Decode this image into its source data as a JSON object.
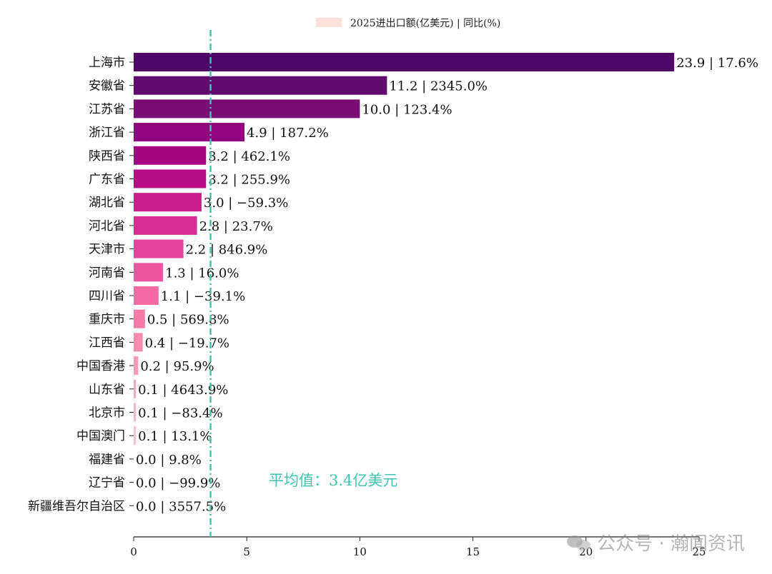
{
  "chart_data": {
    "type": "bar",
    "orientation": "horizontal",
    "legend": "2025进出口额(亿美元) | 同比(%)",
    "legend_position": "top-center",
    "categories": [
      "上海市",
      "安徽省",
      "江苏省",
      "浙江省",
      "陕西省",
      "广东省",
      "湖北省",
      "河北省",
      "天津市",
      "河南省",
      "四川省",
      "重庆市",
      "江西省",
      "中国香港",
      "山东省",
      "北京市",
      "中国澳门",
      "福建省",
      "辽宁省",
      "新疆维吾尔自治区"
    ],
    "values": [
      23.9,
      11.2,
      10.0,
      4.9,
      3.2,
      3.2,
      3.0,
      2.8,
      2.2,
      1.3,
      1.1,
      0.5,
      0.4,
      0.2,
      0.1,
      0.1,
      0.1,
      0.0,
      0.0,
      0.0
    ],
    "bar_labels": [
      "23.9 | 17.6%",
      "11.2 | 2345.0%",
      "10.0 | 123.4%",
      "4.9 | 187.2%",
      "3.2 | 462.1%",
      "3.2 | 255.9%",
      "3.0 | −59.3%",
      "2.8 | 23.7%",
      "2.2 | 846.9%",
      "1.3 | 16.0%",
      "1.1 | −39.1%",
      "0.5 | 569.8%",
      "0.4 | −19.7%",
      "0.2 | 95.9%",
      "0.1 | 4643.9%",
      "0.1 | −83.4%",
      "0.1 | 13.1%",
      "0.0 | 9.8%",
      "0.0 | −99.9%",
      "0.0 | 3557.5%"
    ],
    "colors": [
      "#4e0767",
      "#620b6e",
      "#780d75",
      "#91067c",
      "#a5057f",
      "#b80c87",
      "#c91e8c",
      "#d82e93",
      "#e4429b",
      "#ed569f",
      "#f36aa4",
      "#f57ba9",
      "#f68bb0",
      "#f79bb6",
      "#f8a8bd",
      "#f9b5c4",
      "#fac2cb",
      "#fbcdd2",
      "#fcd7d9",
      "#fde0e0"
    ],
    "legend_color": "#fde0dc",
    "xlim": [
      0,
      25
    ],
    "xticks": [
      0,
      5,
      10,
      15,
      20,
      25
    ],
    "average": 3.4,
    "average_label": "平均值：3.4亿美元",
    "average_color": "#3cc6b0",
    "grid": false
  },
  "watermark": "公众号 · 瀚闻资讯"
}
